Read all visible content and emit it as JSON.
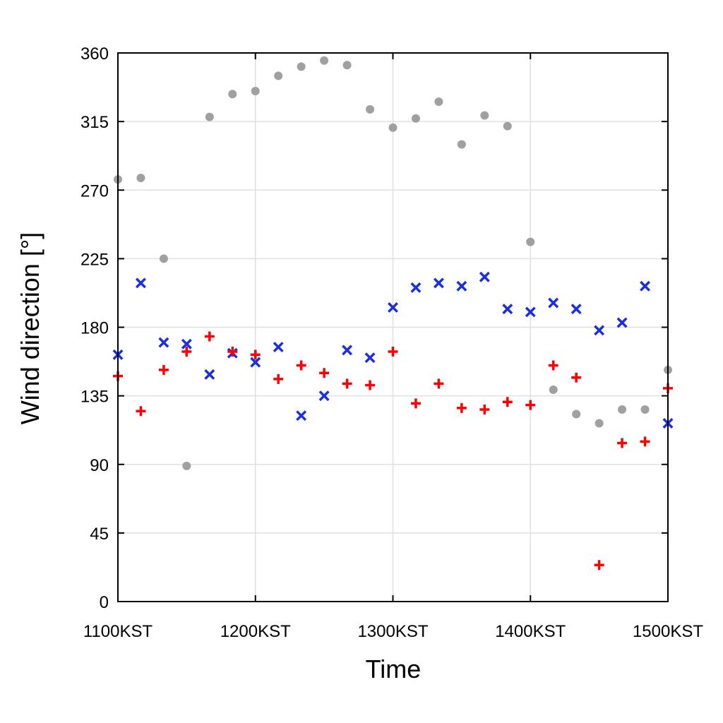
{
  "chart_data": {
    "type": "scatter",
    "xlabel": "Time",
    "ylabel": "Wind direction [°]",
    "xlim": [
      0,
      240
    ],
    "ylim": [
      0,
      360
    ],
    "x_ticks": [
      {
        "value": 0,
        "label": "1100KST"
      },
      {
        "value": 60,
        "label": "1200KST"
      },
      {
        "value": 120,
        "label": "1300KST"
      },
      {
        "value": 180,
        "label": "1400KST"
      },
      {
        "value": 240,
        "label": "1500KST"
      }
    ],
    "y_ticks": [
      0,
      45,
      90,
      135,
      180,
      225,
      270,
      315,
      360
    ],
    "grid": true,
    "x": [
      0,
      10,
      20,
      30,
      40,
      50,
      60,
      70,
      80,
      90,
      100,
      110,
      120,
      130,
      140,
      150,
      160,
      170,
      180,
      190,
      200,
      210,
      220,
      230,
      240
    ],
    "series": [
      {
        "marker": "circle",
        "color": "#a0a0a0",
        "values": [
          277,
          278,
          225,
          89,
          318,
          333,
          335,
          345,
          351,
          355,
          352,
          323,
          311,
          317,
          328,
          300,
          319,
          312,
          236,
          139,
          123,
          117,
          126,
          126,
          152
        ]
      },
      {
        "marker": "x",
        "color": "#1a2fe0",
        "values": [
          162,
          209,
          170,
          169,
          149,
          163,
          157,
          167,
          122,
          135,
          165,
          160,
          193,
          206,
          209,
          207,
          213,
          192,
          190,
          196,
          192,
          178,
          183,
          207,
          117
        ]
      },
      {
        "marker": "plus",
        "color": "#ff0000",
        "values": [
          148,
          125,
          152,
          164,
          174,
          164,
          162,
          146,
          155,
          150,
          143,
          142,
          164,
          130,
          143,
          127,
          126,
          131,
          129,
          155,
          147,
          24,
          104,
          105,
          140
        ]
      }
    ]
  }
}
